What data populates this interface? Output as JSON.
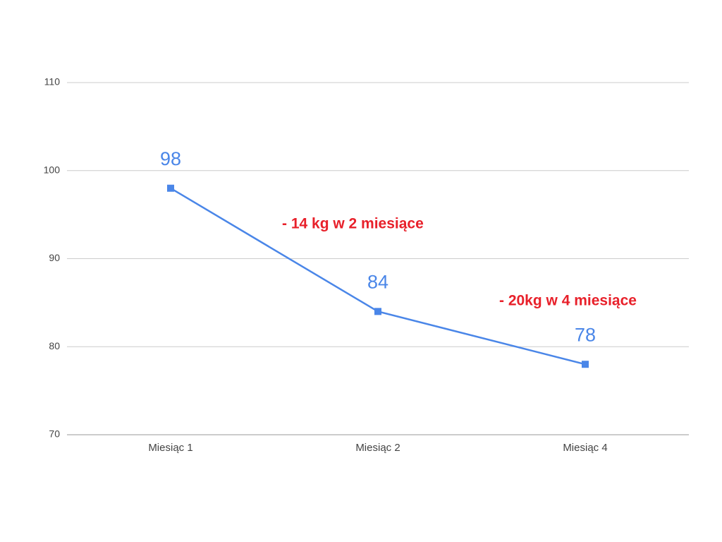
{
  "chart_data": {
    "type": "line",
    "categories": [
      "Miesiąc 1",
      "Miesiąc 2",
      "Miesiąc 4"
    ],
    "values": [
      98,
      84,
      78
    ],
    "color": "#4a86e8",
    "ylim": [
      70,
      110
    ],
    "yticks": [
      70,
      80,
      90,
      100,
      110
    ],
    "grid": true,
    "annotations": [
      "- 14 kg w 2 miesiące",
      "- 20kg w 4 miesiące"
    ]
  }
}
